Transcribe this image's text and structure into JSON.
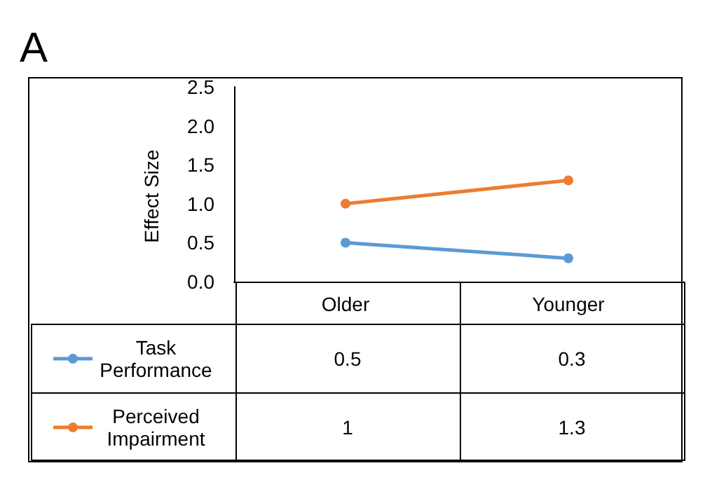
{
  "chart_data": {
    "type": "line",
    "title": "A",
    "ylabel": "Effect Size",
    "categories": [
      "Older",
      "Younger"
    ],
    "series": [
      {
        "name": "Task Performance",
        "color": "#5b9bd5",
        "values": [
          0.5,
          0.3
        ]
      },
      {
        "name": "Perceived Impairment",
        "color": "#ed7d31",
        "values": [
          1,
          1.3
        ]
      }
    ],
    "ylim": [
      0,
      2.5
    ],
    "yticks": [
      {
        "value": 0,
        "label": "0.0"
      },
      0.5,
      {
        "value": 1,
        "label": "1.0"
      },
      1.5,
      {
        "value": 2,
        "label": "2.0"
      },
      2.5
    ],
    "grid": false,
    "legend": "bottom left",
    "marker": "circle",
    "data_labels": true
  }
}
